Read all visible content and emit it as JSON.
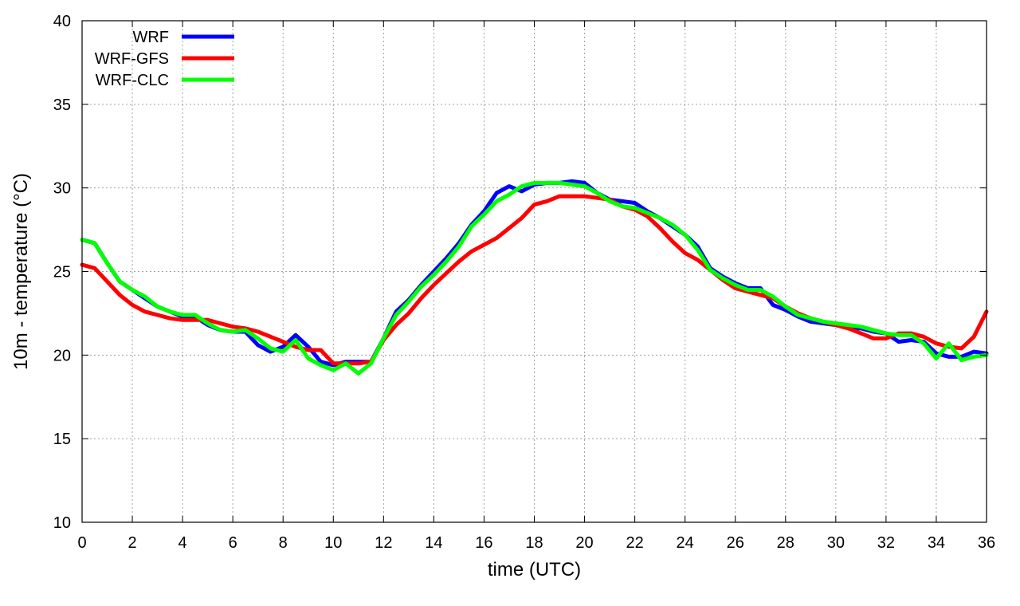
{
  "chart_data": {
    "type": "line",
    "title": "",
    "xlabel": "time (UTC)",
    "ylabel": "10m - temperature (°C)",
    "xlim": [
      0,
      36
    ],
    "ylim": [
      10,
      40
    ],
    "xticks": [
      0,
      2,
      4,
      6,
      8,
      10,
      12,
      14,
      16,
      18,
      20,
      22,
      24,
      26,
      28,
      30,
      32,
      34,
      36
    ],
    "yticks": [
      10,
      15,
      20,
      25,
      30,
      35,
      40
    ],
    "grid": true,
    "legend_position": "top-left",
    "x": [
      0,
      0.5,
      1,
      1.5,
      2,
      2.5,
      3,
      3.5,
      4,
      4.5,
      5,
      5.5,
      6,
      6.5,
      7,
      7.5,
      8,
      8.5,
      9,
      9.5,
      10,
      10.5,
      11,
      11.5,
      12,
      12.5,
      13,
      13.5,
      14,
      14.5,
      15,
      15.5,
      16,
      16.5,
      17,
      17.5,
      18,
      18.5,
      19,
      19.5,
      20,
      20.5,
      21,
      21.5,
      22,
      22.5,
      23,
      23.5,
      24,
      24.5,
      25,
      25.5,
      26,
      26.5,
      27,
      27.5,
      28,
      28.5,
      29,
      29.5,
      30,
      30.5,
      31,
      31.5,
      32,
      32.5,
      33,
      33.5,
      34,
      34.5,
      35,
      35.5,
      36
    ],
    "series": [
      {
        "name": "WRF",
        "color": "#0000ff",
        "values": [
          26.9,
          26.7,
          25.5,
          24.4,
          23.9,
          23.4,
          22.9,
          22.6,
          22.3,
          22.3,
          21.8,
          21.5,
          21.4,
          21.4,
          20.6,
          20.2,
          20.5,
          21.2,
          20.5,
          19.6,
          19.4,
          19.6,
          19.6,
          19.6,
          21.0,
          22.6,
          23.3,
          24.2,
          25.0,
          25.8,
          26.7,
          27.8,
          28.6,
          29.7,
          30.1,
          29.8,
          30.2,
          30.3,
          30.3,
          30.4,
          30.3,
          29.7,
          29.3,
          29.2,
          29.1,
          28.6,
          28.2,
          27.7,
          27.2,
          26.5,
          25.2,
          24.7,
          24.3,
          24.0,
          24.0,
          23.0,
          22.7,
          22.3,
          22.0,
          21.9,
          21.8,
          21.6,
          21.6,
          21.4,
          21.3,
          20.8,
          20.9,
          20.8,
          20.1,
          19.9,
          19.9,
          20.2,
          20.1
        ]
      },
      {
        "name": "WRF-GFS",
        "color": "#ff0000",
        "values": [
          25.4,
          25.2,
          24.4,
          23.6,
          23.0,
          22.6,
          22.4,
          22.2,
          22.1,
          22.1,
          22.1,
          21.9,
          21.7,
          21.6,
          21.4,
          21.1,
          20.8,
          20.5,
          20.3,
          20.3,
          19.5,
          19.5,
          19.5,
          19.6,
          20.9,
          21.8,
          22.5,
          23.4,
          24.2,
          24.9,
          25.6,
          26.2,
          26.6,
          27.0,
          27.6,
          28.2,
          29.0,
          29.2,
          29.5,
          29.5,
          29.5,
          29.4,
          29.3,
          28.9,
          28.7,
          28.3,
          27.6,
          26.8,
          26.1,
          25.7,
          25.1,
          24.5,
          24.0,
          23.8,
          23.6,
          23.4,
          22.9,
          22.5,
          22.2,
          22.0,
          21.8,
          21.6,
          21.3,
          21.0,
          21.0,
          21.3,
          21.3,
          21.1,
          20.7,
          20.5,
          20.4,
          21.1,
          22.6
        ]
      },
      {
        "name": "WRF-CLC",
        "color": "#00ff00",
        "values": [
          26.9,
          26.7,
          25.5,
          24.4,
          23.9,
          23.5,
          22.9,
          22.6,
          22.4,
          22.4,
          21.9,
          21.5,
          21.4,
          21.5,
          21.0,
          20.4,
          20.2,
          20.9,
          19.8,
          19.4,
          19.1,
          19.5,
          18.9,
          19.5,
          21.0,
          22.4,
          23.2,
          24.1,
          24.8,
          25.6,
          26.5,
          27.7,
          28.4,
          29.2,
          29.6,
          30.1,
          30.3,
          30.3,
          30.3,
          30.2,
          30.1,
          29.7,
          29.2,
          28.9,
          28.8,
          28.5,
          28.2,
          27.8,
          27.2,
          26.3,
          25.1,
          24.6,
          24.2,
          23.9,
          23.9,
          23.5,
          22.9,
          22.4,
          22.2,
          22.0,
          21.9,
          21.8,
          21.7,
          21.5,
          21.3,
          21.2,
          21.2,
          20.7,
          19.8,
          20.7,
          19.7,
          19.9,
          20.0
        ]
      }
    ]
  }
}
